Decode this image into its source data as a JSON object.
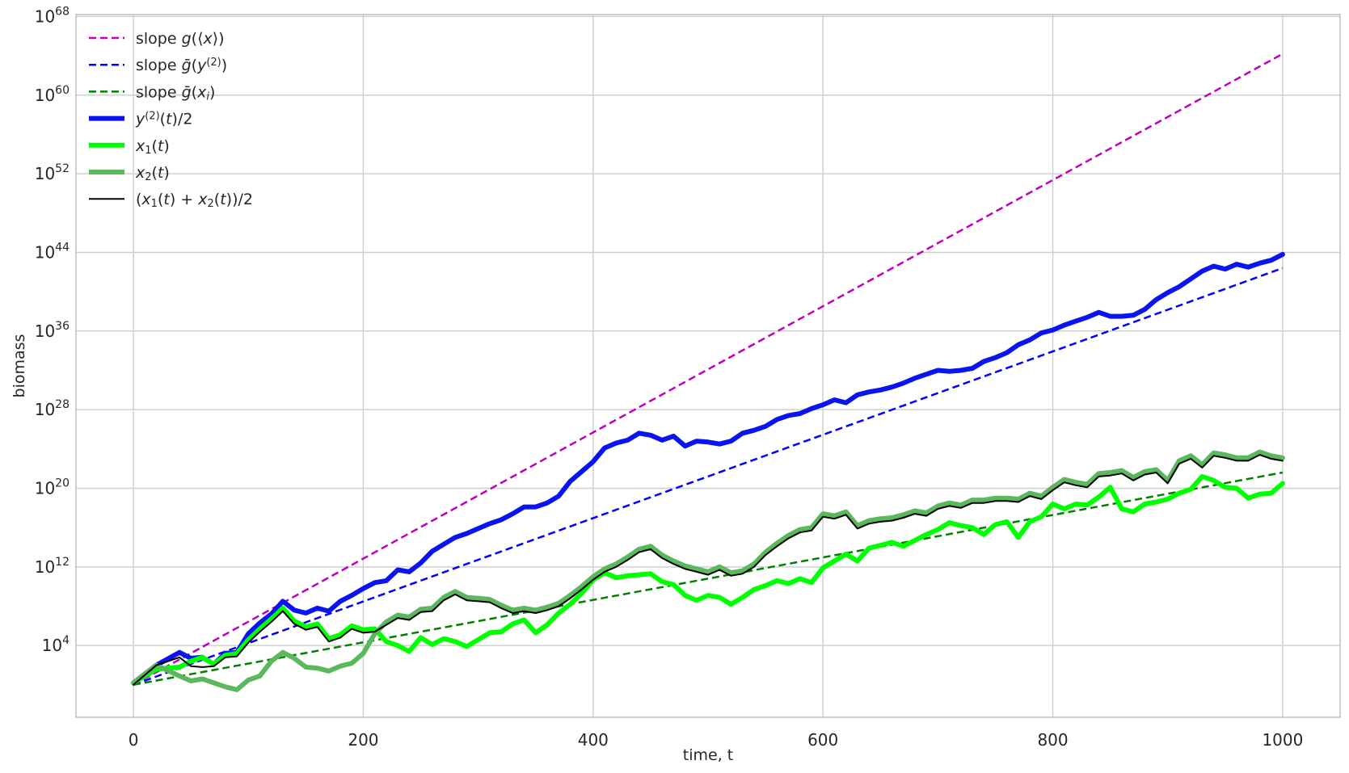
{
  "chart_data": {
    "type": "line",
    "xlabel": "time, t",
    "ylabel": "biomass",
    "xlim": [
      -50,
      1050
    ],
    "ylim_log10": [
      -3.3,
      68.2
    ],
    "y_scale": "log",
    "grid": true,
    "legend_position": "top-left",
    "x_ticks": [
      0,
      200,
      400,
      600,
      800,
      1000
    ],
    "y_ticks": [
      {
        "base": "10",
        "exp": "4",
        "value_log10": 4
      },
      {
        "base": "10",
        "exp": "12",
        "value_log10": 12
      },
      {
        "base": "10",
        "exp": "20",
        "value_log10": 20
      },
      {
        "base": "10",
        "exp": "28",
        "value_log10": 28
      },
      {
        "base": "10",
        "exp": "36",
        "value_log10": 36
      },
      {
        "base": "10",
        "exp": "44",
        "value_log10": 44
      },
      {
        "base": "10",
        "exp": "52",
        "value_log10": 52
      },
      {
        "base": "10",
        "exp": "60",
        "value_log10": 60
      },
      {
        "base": "10",
        "exp": "68",
        "value_log10": 68
      }
    ],
    "series": [
      {
        "key": "slope_g_x",
        "legend_parts": [
          {
            "t": "slope "
          },
          {
            "t": "g",
            "i": true
          },
          {
            "t": "(⟨"
          },
          {
            "t": "x",
            "i": true
          },
          {
            "t": "⟩)"
          }
        ],
        "color": "#bf00bf",
        "style": "dashed",
        "width": 2.5,
        "x": [
          0,
          1000
        ],
        "y_log10": [
          0,
          64.2
        ]
      },
      {
        "key": "slope_gbar_y2",
        "legend_parts": [
          {
            "t": "slope "
          },
          {
            "t": "ḡ",
            "i": true
          },
          {
            "t": "("
          },
          {
            "t": "y",
            "i": true
          },
          {
            "t": "(2)",
            "sup": true
          },
          {
            "t": ")"
          }
        ],
        "color": "#0000ff",
        "style": "dashed",
        "width": 2.5,
        "x": [
          0,
          1000
        ],
        "y_log10": [
          0,
          42.4
        ]
      },
      {
        "key": "slope_gbar_xi",
        "legend_parts": [
          {
            "t": "slope "
          },
          {
            "t": "ḡ",
            "i": true
          },
          {
            "t": "("
          },
          {
            "t": "x",
            "i": true
          },
          {
            "t": "i",
            "i": true,
            "sub": true
          },
          {
            "t": ")"
          }
        ],
        "color": "#008000",
        "style": "dashed",
        "width": 2.5,
        "x": [
          0,
          1000
        ],
        "y_log10": [
          0,
          21.6
        ]
      },
      {
        "key": "y2_half",
        "legend_parts": [
          {
            "t": "y",
            "i": true
          },
          {
            "t": "(2)",
            "sup": true
          },
          {
            "t": "("
          },
          {
            "t": "t",
            "i": true
          },
          {
            "t": ")/2"
          }
        ],
        "color": "#0a14f0",
        "style": "solid",
        "width": 6,
        "x": [
          0,
          20,
          40,
          50,
          60,
          70,
          80,
          90,
          100,
          110,
          120,
          130,
          140,
          150,
          160,
          170,
          180,
          190,
          200,
          210,
          220,
          230,
          240,
          250,
          260,
          270,
          280,
          290,
          300,
          310,
          320,
          330,
          340,
          350,
          360,
          370,
          380,
          390,
          400,
          410,
          420,
          430,
          440,
          450,
          460,
          470,
          480,
          490,
          500,
          510,
          520,
          530,
          540,
          550,
          560,
          570,
          580,
          590,
          600,
          610,
          620,
          630,
          640,
          650,
          660,
          670,
          680,
          690,
          700,
          710,
          720,
          730,
          740,
          750,
          760,
          770,
          780,
          790,
          800,
          810,
          820,
          830,
          840,
          850,
          860,
          870,
          880,
          890,
          900,
          910,
          920,
          930,
          940,
          950,
          960,
          970,
          980,
          990,
          1000
        ],
        "y_log10": [
          0.2,
          2.0,
          3.3,
          2.7,
          2.8,
          2.1,
          3.2,
          3.3,
          5.2,
          6.3,
          7.2,
          8.5,
          7.6,
          7.3,
          7.8,
          7.5,
          8.5,
          9.1,
          9.8,
          10.4,
          10.6,
          11.7,
          11.5,
          12.4,
          13.6,
          14.3,
          15.0,
          15.4,
          15.9,
          16.4,
          16.8,
          17.4,
          18.1,
          18.1,
          18.5,
          19.2,
          20.7,
          21.7,
          22.7,
          24.1,
          24.6,
          24.9,
          25.6,
          25.4,
          24.9,
          25.3,
          24.3,
          24.8,
          24.7,
          24.5,
          24.8,
          25.6,
          25.9,
          26.3,
          27.0,
          27.4,
          27.6,
          28.1,
          28.5,
          29.0,
          28.7,
          29.5,
          29.8,
          30.0,
          30.3,
          30.7,
          31.2,
          31.6,
          32.0,
          31.9,
          32.0,
          32.2,
          32.9,
          33.3,
          33.8,
          34.6,
          35.1,
          35.8,
          36.1,
          36.6,
          37.0,
          37.4,
          37.9,
          37.5,
          37.5,
          37.6,
          38.2,
          39.2,
          39.9,
          40.5,
          41.3,
          42.1,
          42.6,
          42.3,
          42.8,
          42.5,
          42.9,
          43.2,
          43.8
        ]
      },
      {
        "key": "x1",
        "legend_parts": [
          {
            "t": "x",
            "i": true
          },
          {
            "t": "1",
            "sub": true
          },
          {
            "t": "("
          },
          {
            "t": "t",
            "i": true
          },
          {
            "t": ")"
          }
        ],
        "color": "#00ff00",
        "style": "solid",
        "width": 6,
        "x": [
          0,
          20,
          40,
          50,
          60,
          70,
          80,
          90,
          100,
          110,
          120,
          130,
          140,
          150,
          160,
          170,
          180,
          190,
          200,
          210,
          220,
          230,
          240,
          250,
          260,
          270,
          280,
          290,
          300,
          310,
          320,
          330,
          340,
          350,
          360,
          370,
          380,
          390,
          400,
          410,
          420,
          430,
          440,
          450,
          460,
          470,
          480,
          490,
          500,
          510,
          520,
          530,
          540,
          550,
          560,
          570,
          580,
          590,
          600,
          610,
          620,
          630,
          640,
          650,
          660,
          670,
          680,
          690,
          700,
          710,
          720,
          730,
          740,
          750,
          760,
          770,
          780,
          790,
          800,
          810,
          820,
          830,
          840,
          850,
          860,
          870,
          880,
          890,
          900,
          910,
          920,
          930,
          940,
          950,
          960,
          970,
          980,
          990,
          1000
        ],
        "y_log10": [
          0.2,
          1.6,
          1.8,
          2.4,
          2.8,
          2.1,
          3.0,
          3.2,
          4.6,
          5.7,
          6.7,
          7.8,
          6.5,
          5.9,
          6.2,
          4.7,
          5.1,
          6.0,
          5.6,
          5.7,
          4.4,
          4.0,
          3.4,
          4.8,
          4.1,
          4.7,
          4.4,
          3.9,
          4.6,
          5.3,
          5.4,
          6.2,
          6.6,
          5.3,
          6.1,
          7.3,
          8.2,
          9.3,
          10.7,
          11.4,
          10.9,
          11.1,
          11.2,
          11.3,
          10.5,
          10.2,
          9.1,
          8.6,
          9.1,
          8.9,
          8.2,
          8.9,
          9.7,
          10.1,
          10.6,
          10.3,
          10.8,
          10.4,
          11.9,
          12.6,
          13.3,
          12.6,
          13.9,
          14.2,
          14.5,
          14.1,
          14.7,
          15.3,
          15.8,
          16.5,
          16.2,
          16.0,
          15.3,
          16.3,
          16.6,
          15.0,
          16.6,
          17.1,
          18.4,
          17.9,
          18.4,
          18.3,
          19.1,
          20.1,
          17.9,
          17.6,
          18.4,
          18.6,
          18.9,
          19.5,
          19.9,
          21.2,
          20.8,
          20.1,
          20.0,
          19.0,
          19.4,
          19.5,
          20.5
        ]
      },
      {
        "key": "x2",
        "legend_parts": [
          {
            "t": "x",
            "i": true
          },
          {
            "t": "2",
            "sub": true
          },
          {
            "t": "("
          },
          {
            "t": "t",
            "i": true
          },
          {
            "t": ")"
          }
        ],
        "color": "#5cb85c",
        "style": "solid",
        "width": 6,
        "x": [
          0,
          20,
          40,
          50,
          60,
          70,
          80,
          90,
          100,
          110,
          120,
          130,
          140,
          150,
          160,
          170,
          180,
          190,
          200,
          210,
          220,
          230,
          240,
          250,
          260,
          270,
          280,
          290,
          300,
          310,
          320,
          330,
          340,
          350,
          360,
          370,
          380,
          390,
          400,
          410,
          420,
          430,
          440,
          450,
          460,
          470,
          480,
          490,
          500,
          510,
          520,
          530,
          540,
          550,
          560,
          570,
          580,
          590,
          600,
          610,
          620,
          630,
          640,
          650,
          660,
          670,
          680,
          690,
          700,
          710,
          720,
          730,
          740,
          750,
          760,
          770,
          780,
          790,
          800,
          810,
          820,
          830,
          840,
          850,
          860,
          870,
          880,
          890,
          900,
          910,
          920,
          930,
          940,
          950,
          960,
          970,
          980,
          990,
          1000
        ],
        "y_log10": [
          0.2,
          2.0,
          0.9,
          0.4,
          0.6,
          0.2,
          -0.2,
          -0.5,
          0.5,
          0.9,
          2.4,
          3.3,
          2.7,
          1.8,
          1.7,
          1.4,
          1.9,
          2.2,
          3.2,
          5.2,
          6.4,
          7.1,
          6.9,
          7.7,
          7.8,
          8.9,
          9.5,
          8.9,
          8.8,
          8.7,
          8.1,
          7.6,
          7.8,
          7.6,
          7.9,
          8.3,
          9.1,
          10.0,
          11.0,
          11.8,
          12.3,
          13.0,
          13.8,
          14.1,
          13.2,
          12.6,
          12.1,
          11.8,
          11.5,
          12.0,
          11.4,
          11.6,
          12.3,
          13.5,
          14.4,
          15.2,
          15.8,
          16.0,
          17.4,
          17.2,
          17.6,
          16.2,
          16.7,
          16.9,
          17.0,
          17.3,
          17.7,
          17.5,
          18.2,
          18.5,
          18.3,
          18.8,
          18.8,
          19.0,
          19.0,
          18.9,
          19.5,
          19.2,
          20.1,
          20.9,
          20.6,
          20.4,
          21.5,
          21.6,
          21.8,
          21.1,
          21.7,
          21.9,
          20.8,
          22.8,
          23.3,
          22.4,
          23.6,
          23.4,
          23.1,
          23.1,
          23.7,
          23.3,
          23.1
        ]
      },
      {
        "key": "mean_x",
        "legend_parts": [
          {
            "t": "("
          },
          {
            "t": "x",
            "i": true
          },
          {
            "t": "1",
            "sub": true
          },
          {
            "t": "("
          },
          {
            "t": "t",
            "i": true
          },
          {
            "t": ") + "
          },
          {
            "t": "x",
            "i": true
          },
          {
            "t": "2",
            "sub": true
          },
          {
            "t": "("
          },
          {
            "t": "t",
            "i": true
          },
          {
            "t": "))/2"
          }
        ],
        "color": "#000000",
        "style": "solid",
        "width": 2,
        "x": [
          0,
          20,
          40,
          50,
          60,
          70,
          80,
          90,
          100,
          110,
          120,
          130,
          140,
          150,
          160,
          170,
          180,
          190,
          200,
          210,
          220,
          230,
          240,
          250,
          260,
          270,
          280,
          290,
          300,
          310,
          320,
          330,
          340,
          350,
          360,
          370,
          380,
          390,
          400,
          410,
          420,
          430,
          440,
          450,
          460,
          470,
          480,
          490,
          500,
          510,
          520,
          530,
          540,
          550,
          560,
          570,
          580,
          590,
          600,
          610,
          620,
          630,
          640,
          650,
          660,
          670,
          680,
          690,
          700,
          710,
          720,
          730,
          740,
          750,
          760,
          770,
          780,
          790,
          800,
          810,
          820,
          830,
          840,
          850,
          860,
          870,
          880,
          890,
          900,
          910,
          920,
          930,
          940,
          950,
          960,
          970,
          980,
          990,
          1000
        ],
        "y_log10": [
          0.0,
          2.0,
          2.8,
          1.9,
          1.8,
          1.9,
          2.8,
          2.9,
          4.3,
          5.4,
          6.4,
          7.5,
          6.2,
          5.6,
          5.9,
          4.4,
          4.8,
          5.7,
          5.3,
          5.4,
          6.1,
          6.8,
          6.6,
          7.4,
          7.5,
          8.6,
          9.2,
          8.6,
          8.5,
          8.4,
          7.8,
          7.3,
          7.5,
          7.3,
          7.6,
          8.0,
          8.8,
          9.7,
          10.7,
          11.5,
          12.0,
          12.7,
          13.5,
          13.8,
          12.9,
          12.3,
          11.8,
          11.5,
          11.2,
          11.7,
          11.1,
          11.3,
          12.0,
          13.2,
          14.1,
          14.9,
          15.5,
          15.7,
          17.1,
          16.9,
          17.3,
          15.9,
          16.4,
          16.6,
          16.7,
          17.0,
          17.4,
          17.2,
          17.9,
          18.2,
          18.0,
          18.5,
          18.5,
          18.7,
          18.7,
          18.6,
          19.2,
          18.9,
          19.8,
          20.6,
          20.3,
          20.1,
          21.2,
          21.3,
          21.5,
          20.8,
          21.4,
          21.6,
          20.5,
          22.5,
          23.0,
          22.1,
          23.3,
          23.1,
          22.8,
          22.8,
          23.4,
          23.0,
          22.8
        ]
      }
    ]
  }
}
